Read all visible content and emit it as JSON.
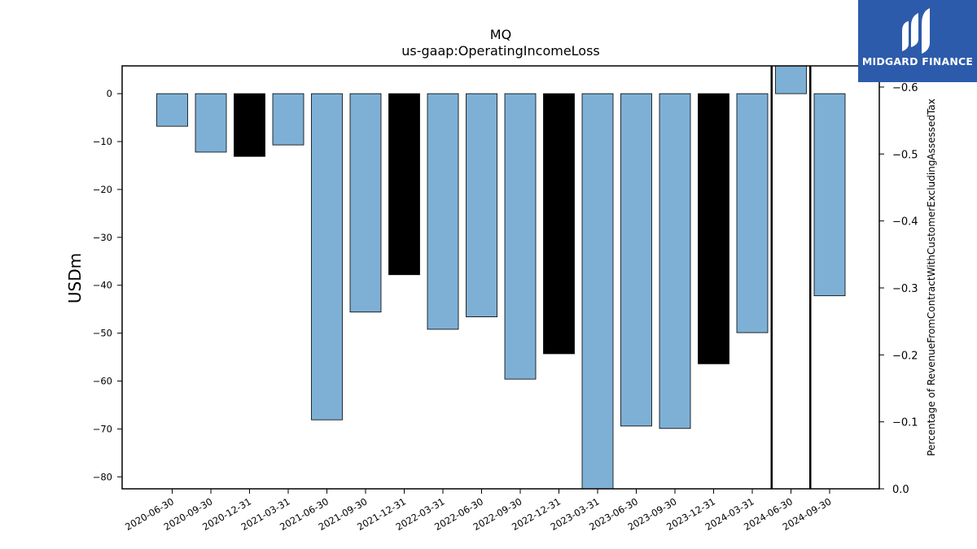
{
  "logo": {
    "name": "MIDGARD FINANCE",
    "icon": "midgard-logo-icon",
    "bg": "#2d5bab"
  },
  "chart_data": {
    "type": "bar",
    "title": "MQ",
    "subtitle": "us-gaap:OperatingIncomeLoss",
    "ylabel": "USDm",
    "y2label": "Percentage of RevenueFromContractWithCustomerExcludingAssessedTax",
    "categories": [
      "2020-06-30",
      "2020-09-30",
      "2020-12-31",
      "2021-03-31",
      "2021-06-30",
      "2021-09-30",
      "2021-12-31",
      "2022-03-31",
      "2022-06-30",
      "2022-09-30",
      "2022-12-31",
      "2023-03-31",
      "2023-06-30",
      "2023-09-30",
      "2023-12-31",
      "2024-03-31",
      "2024-06-30",
      "2024-09-30"
    ],
    "values": [
      -6.8,
      -12.2,
      -13.1,
      -10.7,
      -68.1,
      -45.6,
      -37.8,
      -49.2,
      -46.6,
      -59.6,
      -54.3,
      -82.5,
      -69.4,
      -69.9,
      -56.4,
      -49.9,
      5.8,
      -42.2
    ],
    "bar_colors": [
      "#7eb0d5",
      "#7eb0d5",
      "#000000",
      "#7eb0d5",
      "#7eb0d5",
      "#7eb0d5",
      "#000000",
      "#7eb0d5",
      "#7eb0d5",
      "#7eb0d5",
      "#000000",
      "#7eb0d5",
      "#7eb0d5",
      "#7eb0d5",
      "#000000",
      "#7eb0d5",
      "#7eb0d5",
      "#7eb0d5"
    ],
    "ylim": [
      -82.5,
      5.8
    ],
    "yticks": [
      0,
      -10,
      -20,
      -30,
      -40,
      -50,
      -60,
      -70,
      -80
    ],
    "y2lim": [
      0.0,
      -0.6
    ],
    "y2ticks": [
      0.0,
      -0.1,
      -0.2,
      -0.3,
      -0.4,
      -0.5,
      -0.6
    ],
    "y2ticklabels": [
      "0.0",
      "−0.1",
      "−0.2",
      "−0.3",
      "−0.4",
      "−0.5",
      "−0.6"
    ],
    "yticklabels": [
      "0",
      "−10",
      "−20",
      "−30",
      "−40",
      "−50",
      "−60",
      "−70",
      "−80"
    ],
    "vertical_lines_between": [
      [
        15,
        16
      ],
      [
        16,
        17
      ]
    ],
    "grid": false,
    "legend": "none"
  }
}
